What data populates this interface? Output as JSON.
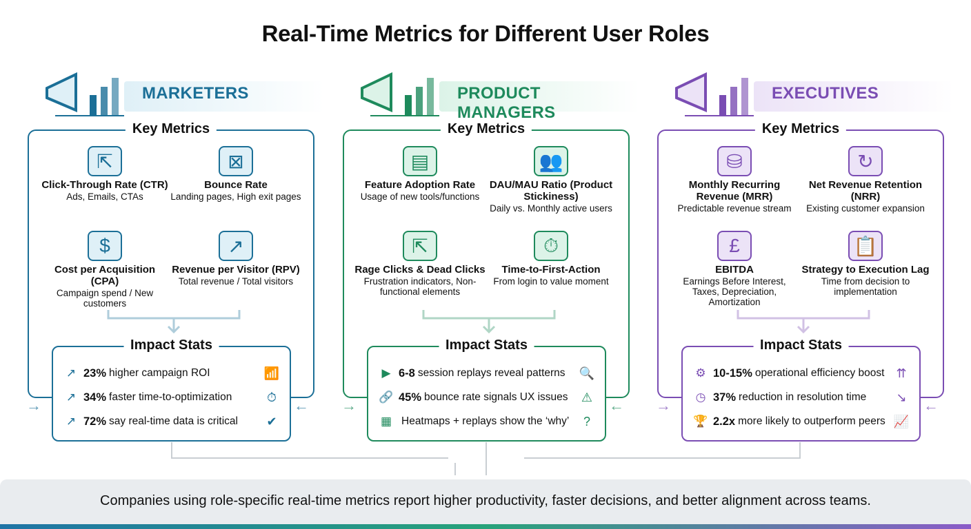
{
  "title": "Real-Time Metrics for Different User Roles",
  "roles": [
    {
      "name": "MARKETERS",
      "color": "#1b6f97",
      "light": "#dff0f7",
      "icon": "megaphone-chart-icon",
      "glyph": "📣",
      "key_metrics_title": "Key Metrics",
      "metrics": [
        {
          "title": "Click-Through Rate (CTR)",
          "desc": "Ads, Emails, CTAs",
          "icon": "cursor-click-icon",
          "glyph": "⇱"
        },
        {
          "title": "Bounce Rate",
          "desc": "Landing pages, High exit pages",
          "icon": "user-window-x-icon",
          "glyph": "⊠"
        },
        {
          "title": "Cost per Acquisition (CPA)",
          "desc": "Campaign spend / New customers",
          "icon": "dollar-arrow-icon",
          "glyph": "$"
        },
        {
          "title": "Revenue per Visitor (RPV)",
          "desc": "Total revenue / Total visitors",
          "icon": "dollar-trend-icon",
          "glyph": "↗"
        }
      ],
      "impact_title": "Impact Stats",
      "stats": [
        {
          "value": "23%",
          "text": "higher campaign ROI",
          "left_icon": "trend-up-icon",
          "lg": "↗",
          "right_icon": "bar-chart-icon",
          "rg": "📶"
        },
        {
          "value": "34%",
          "text": "faster time-to-optimization",
          "left_icon": "trend-up-icon",
          "lg": "↗",
          "right_icon": "stopwatch-icon",
          "rg": "⏱"
        },
        {
          "value": "72%",
          "text": "say real-time data is critical",
          "left_icon": "trend-up-icon",
          "lg": "↗",
          "right_icon": "check-circle-icon",
          "rg": "✔"
        }
      ]
    },
    {
      "name": "PRODUCT MANAGERS",
      "color": "#1e8a5c",
      "light": "#dcf3e8",
      "icon": "dashboard-gear-icon",
      "glyph": "⚙",
      "key_metrics_title": "Key Metrics",
      "metrics": [
        {
          "title": "Feature Adoption Rate",
          "desc": "Usage of new tools/functions",
          "icon": "feature-card-icon",
          "glyph": "▤"
        },
        {
          "title": "DAU/MAU Ratio (Product Stickiness)",
          "desc": "Daily vs. Monthly active users",
          "icon": "users-icon",
          "glyph": "👥"
        },
        {
          "title": "Rage Clicks & Dead Clicks",
          "desc": "Frustration indicators, Non-functional elements",
          "icon": "cursor-x-icon",
          "glyph": "⇱"
        },
        {
          "title": "Time-to-First-Action",
          "desc": "From login to value moment",
          "icon": "stopwatch-icon",
          "glyph": "⏱"
        }
      ],
      "impact_title": "Impact Stats",
      "stats": [
        {
          "value": "6-8",
          "text": "session replays reveal patterns",
          "left_icon": "play-icon",
          "lg": "▶",
          "right_icon": "search-play-icon",
          "rg": "🔍"
        },
        {
          "value": "45%",
          "text": "bounce rate signals UX issues",
          "left_icon": "broken-link-icon",
          "lg": "🔗",
          "right_icon": "warning-icon",
          "rg": "⚠"
        },
        {
          "value": "",
          "text": "Heatmaps + replays show the ‘why’",
          "left_icon": "heatmap-grid-icon",
          "lg": "▦",
          "right_icon": "question-cycle-icon",
          "rg": "?"
        }
      ]
    },
    {
      "name": "EXECUTIVES",
      "color": "#7a4db3",
      "light": "#ece3f7",
      "icon": "strategy-board-handshake-icon",
      "glyph": "🤝",
      "key_metrics_title": "Key Metrics",
      "metrics": [
        {
          "title": "Monthly Recurring Revenue (MRR)",
          "desc": "Predictable revenue stream",
          "icon": "coin-stack-icon",
          "glyph": "⛁"
        },
        {
          "title": "Net Revenue Retention (NRR)",
          "desc": "Existing customer expansion",
          "icon": "user-cycle-dollar-icon",
          "glyph": "↻"
        },
        {
          "title": "EBITDA",
          "desc": "Earnings Before Interest, Taxes, Depreciation, Amortization",
          "icon": "pound-bar-chart-icon",
          "glyph": "£"
        },
        {
          "title": "Strategy to Execution Lag",
          "desc": "Time from decision to implementation",
          "icon": "clipboard-strategy-icon",
          "glyph": "📋"
        }
      ],
      "impact_title": "Impact Stats",
      "stats": [
        {
          "value": "10-15%",
          "text": "operational efficiency boost",
          "left_icon": "gears-icon",
          "lg": "⚙",
          "right_icon": "arrows-up-icon",
          "rg": "⇈"
        },
        {
          "value": "37%",
          "text": "reduction in resolution time",
          "left_icon": "clock-icon",
          "lg": "◷",
          "right_icon": "trend-down-icon",
          "rg": "↘"
        },
        {
          "value": "2.2x",
          "text": "more likely to outperform peers",
          "left_icon": "trophy-icon",
          "lg": "🏆",
          "right_icon": "growth-chart-icon",
          "rg": "📈"
        }
      ]
    }
  ],
  "footer": "Companies using role-specific real-time metrics report higher productivity, faster decisions, and better alignment across teams."
}
